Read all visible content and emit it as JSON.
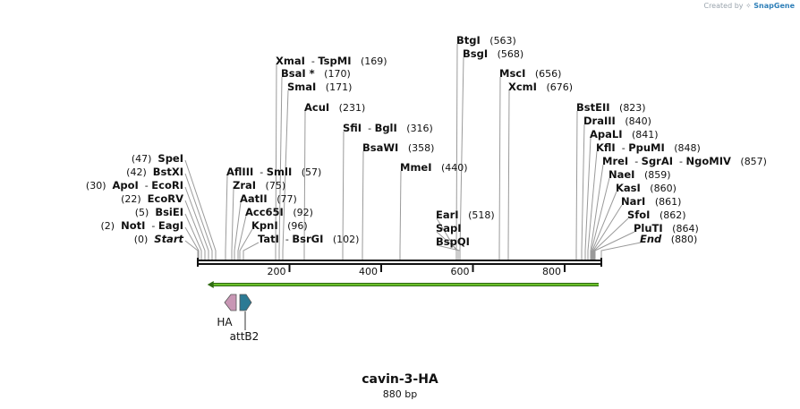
{
  "credit": {
    "prefix": "Created by",
    "brand": "SnapGene"
  },
  "construct": {
    "name": "cavin-3-HA",
    "length_label": "880 bp",
    "length_bp": 880
  },
  "axis": {
    "ticks": [
      200,
      400,
      600,
      800
    ]
  },
  "colors": {
    "backbone": "#111111",
    "orf_arrow": "#6bbf2a",
    "ha_feature": "#c896b4",
    "attb2_feature": "#2c7a94",
    "cut_line": "#9a9a9a"
  },
  "sites": [
    {
      "names": [
        "Start"
      ],
      "pos": 0,
      "pos_label": "(0)",
      "italic": true
    },
    {
      "names": [
        "NotI",
        "EagI"
      ],
      "pos": 2,
      "pos_label": "(2)"
    },
    {
      "names": [
        "BsiEI"
      ],
      "pos": 5,
      "pos_label": "(5)"
    },
    {
      "names": [
        "EcoRV"
      ],
      "pos": 22,
      "pos_label": "(22)"
    },
    {
      "names": [
        "ApoI",
        "EcoRI"
      ],
      "pos": 30,
      "pos_label": "(30)"
    },
    {
      "names": [
        "BstXI"
      ],
      "pos": 42,
      "pos_label": "(42)"
    },
    {
      "names": [
        "SpeI"
      ],
      "pos": 47,
      "pos_label": "(47)"
    },
    {
      "names": [
        "AflIII",
        "SmlI"
      ],
      "pos": 57,
      "pos_label": "(57)"
    },
    {
      "names": [
        "ZraI"
      ],
      "pos": 75,
      "pos_label": "(75)"
    },
    {
      "names": [
        "AatII"
      ],
      "pos": 77,
      "pos_label": "(77)"
    },
    {
      "names": [
        "Acc65I"
      ],
      "pos": 92,
      "pos_label": "(92)"
    },
    {
      "names": [
        "KpnI"
      ],
      "pos": 96,
      "pos_label": "(96)"
    },
    {
      "names": [
        "TatI",
        "BsrGI"
      ],
      "pos": 102,
      "pos_label": "(102)"
    },
    {
      "names": [
        "XmaI",
        "TspMI"
      ],
      "pos": 169,
      "pos_label": "(169)"
    },
    {
      "names": [
        "BsaI *"
      ],
      "pos": 170,
      "pos_label": "(170)"
    },
    {
      "names": [
        "SmaI"
      ],
      "pos": 171,
      "pos_label": "(171)"
    },
    {
      "names": [
        "AcuI"
      ],
      "pos": 231,
      "pos_label": "(231)"
    },
    {
      "names": [
        "SfiI",
        "BglI"
      ],
      "pos": 316,
      "pos_label": "(316)"
    },
    {
      "names": [
        "BsaWI"
      ],
      "pos": 358,
      "pos_label": "(358)"
    },
    {
      "names": [
        "MmeI"
      ],
      "pos": 440,
      "pos_label": "(440)"
    },
    {
      "names": [
        "EarI"
      ],
      "pos": 518,
      "pos_label": "(518)"
    },
    {
      "names": [
        "SapI"
      ],
      "pos": 518,
      "pos_label": ""
    },
    {
      "names": [
        "BspQI"
      ],
      "pos": 518,
      "pos_label": ""
    },
    {
      "names": [
        "BtgI"
      ],
      "pos": 563,
      "pos_label": "(563)"
    },
    {
      "names": [
        "BsgI"
      ],
      "pos": 568,
      "pos_label": "(568)"
    },
    {
      "names": [
        "MscI"
      ],
      "pos": 656,
      "pos_label": "(656)"
    },
    {
      "names": [
        "XcmI"
      ],
      "pos": 676,
      "pos_label": "(676)"
    },
    {
      "names": [
        "BstEII"
      ],
      "pos": 823,
      "pos_label": "(823)"
    },
    {
      "names": [
        "DraIII"
      ],
      "pos": 840,
      "pos_label": "(840)"
    },
    {
      "names": [
        "ApaLI"
      ],
      "pos": 841,
      "pos_label": "(841)"
    },
    {
      "names": [
        "KflI",
        "PpuMI"
      ],
      "pos": 848,
      "pos_label": "(848)"
    },
    {
      "names": [
        "MreI",
        "SgrAI",
        "NgoMIV"
      ],
      "pos": 857,
      "pos_label": "(857)"
    },
    {
      "names": [
        "NaeI"
      ],
      "pos": 859,
      "pos_label": "(859)"
    },
    {
      "names": [
        "KasI"
      ],
      "pos": 860,
      "pos_label": "(860)"
    },
    {
      "names": [
        "NarI"
      ],
      "pos": 861,
      "pos_label": "(861)"
    },
    {
      "names": [
        "SfoI"
      ],
      "pos": 862,
      "pos_label": "(862)"
    },
    {
      "names": [
        "PluTI"
      ],
      "pos": 864,
      "pos_label": "(864)"
    },
    {
      "names": [
        "End"
      ],
      "pos": 880,
      "pos_label": "(880)",
      "italic": true
    }
  ],
  "features": [
    {
      "name": "HA",
      "start": 60,
      "end": 87,
      "direction": "reverse"
    },
    {
      "name": "attB2",
      "start": 90,
      "end": 115,
      "direction": "forward"
    }
  ],
  "orf": {
    "start": 60,
    "end": 880,
    "direction": "reverse"
  }
}
